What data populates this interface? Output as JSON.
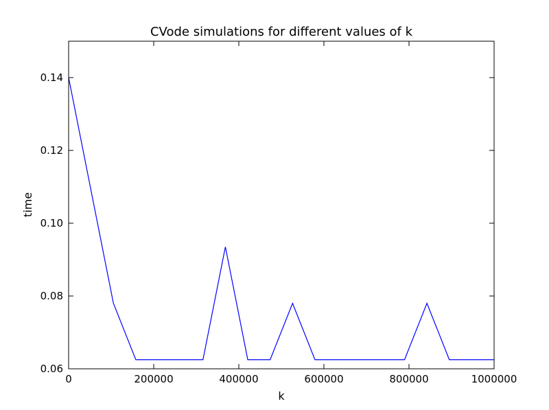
{
  "chart_data": {
    "type": "line",
    "title": "CVode simulations for different values of k",
    "xlabel": "k",
    "ylabel": "time",
    "xlim": [
      0,
      1000000
    ],
    "ylim": [
      0.06,
      0.15
    ],
    "xticks": [
      0,
      200000,
      400000,
      600000,
      800000,
      1000000
    ],
    "xtick_labels": [
      "0",
      "200000",
      "400000",
      "600000",
      "800000",
      "1000000"
    ],
    "yticks": [
      0.06,
      0.08,
      0.1,
      0.12,
      0.14
    ],
    "ytick_labels": [
      "0.06",
      "0.08",
      "0.10",
      "0.12",
      "0.14"
    ],
    "grid": false,
    "series": [
      {
        "color": "#0000ff",
        "x": [
          0,
          105263,
          157895,
          315789,
          368421,
          421053,
          473684,
          526316,
          578947,
          789474,
          842105,
          894737,
          1000000
        ],
        "y": [
          0.14,
          0.078,
          0.0625,
          0.0625,
          0.0935,
          0.0625,
          0.0625,
          0.078,
          0.0625,
          0.0625,
          0.078,
          0.0625,
          0.0625
        ]
      }
    ]
  }
}
